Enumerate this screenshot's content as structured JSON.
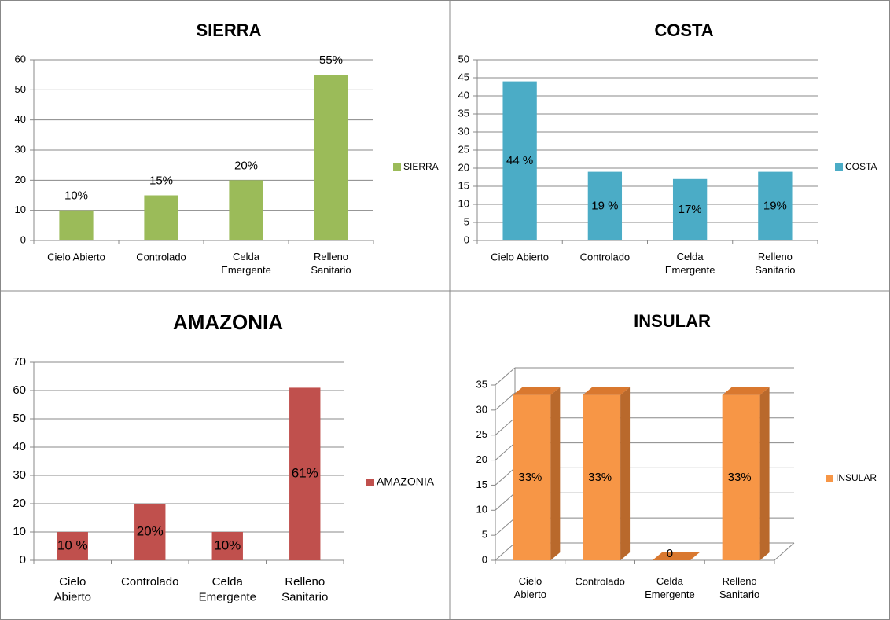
{
  "chart_data": [
    {
      "type": "bar",
      "title": "SIERRA",
      "categories": [
        "Cielo Abierto",
        "Controlado",
        "Celda Emergente",
        "Relleno Sanitario"
      ],
      "series": [
        {
          "name": "SIERRA",
          "color": "#9bbb59",
          "values": [
            10,
            15,
            20,
            55
          ],
          "value_labels": [
            "10%",
            "15%",
            "20%",
            "55%"
          ]
        }
      ],
      "ylim": [
        0,
        60
      ],
      "yticks": [
        0,
        10,
        20,
        30,
        40,
        50,
        60
      ],
      "grid": true,
      "legend": "right",
      "data_label_position": "above"
    },
    {
      "type": "bar",
      "title": "COSTA",
      "categories": [
        "Cielo Abierto",
        "Controlado",
        "Celda Emergente",
        "Relleno Sanitario"
      ],
      "series": [
        {
          "name": "COSTA",
          "color": "#4bacc6",
          "values": [
            44,
            19,
            17,
            19
          ],
          "value_labels": [
            "44 %",
            "19 %",
            "17%",
            "19%"
          ]
        }
      ],
      "ylim": [
        0,
        50
      ],
      "yticks": [
        0,
        5,
        10,
        15,
        20,
        25,
        30,
        35,
        40,
        45,
        50
      ],
      "grid": true,
      "legend": "right",
      "data_label_position": "center"
    },
    {
      "type": "bar",
      "title": "AMAZONIA",
      "categories": [
        "Cielo Abierto",
        "Controlado",
        "Celda Emergente",
        "Relleno Sanitario"
      ],
      "series": [
        {
          "name": "AMAZONIA",
          "color": "#c0504d",
          "values": [
            10,
            20,
            10,
            61
          ],
          "value_labels": [
            "10 %",
            "20%",
            "10%",
            "61%"
          ]
        }
      ],
      "ylim": [
        0,
        70
      ],
      "yticks": [
        0,
        10,
        20,
        30,
        40,
        50,
        60,
        70
      ],
      "grid": true,
      "legend": "right",
      "data_label_position": "center"
    },
    {
      "type": "bar3d",
      "title": "INSULAR",
      "categories": [
        "Cielo Abierto",
        "Controlado",
        "Celda Emergente",
        "Relleno Sanitario"
      ],
      "series": [
        {
          "name": "INSULAR",
          "color": "#f79646",
          "values": [
            33,
            33,
            0,
            33
          ],
          "value_labels": [
            "33%",
            "33%",
            "0",
            "33%"
          ]
        }
      ],
      "ylim": [
        0,
        35
      ],
      "yticks": [
        0,
        5,
        10,
        15,
        20,
        25,
        30,
        35
      ],
      "grid": true,
      "legend": "right",
      "data_label_position": "center"
    }
  ]
}
